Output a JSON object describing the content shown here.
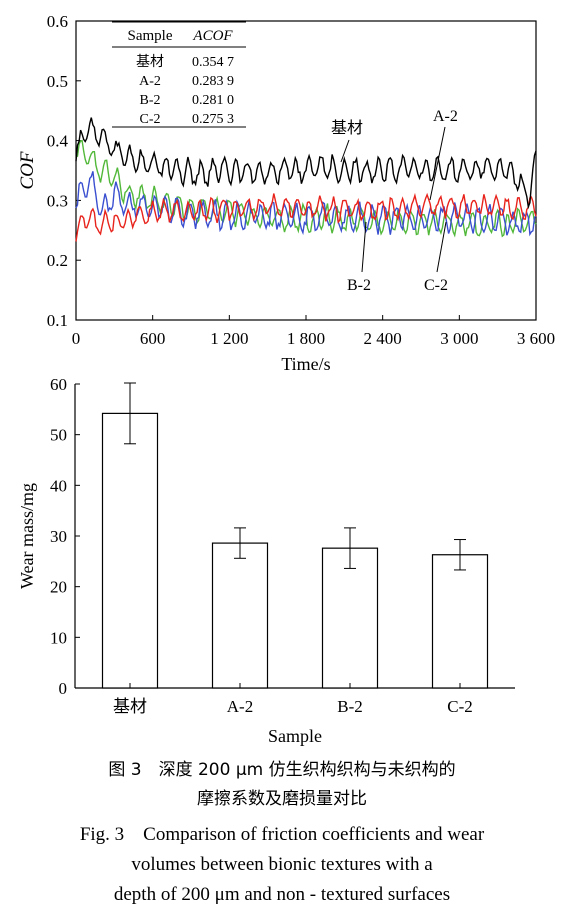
{
  "chart_data": [
    {
      "type": "line",
      "xlabel": "Time/s",
      "ylabel": "COF",
      "xlim": [
        0,
        3600
      ],
      "ylim": [
        0.1,
        0.6
      ],
      "x_ticks": [
        0,
        600,
        1200,
        1800,
        2400,
        3000,
        3600
      ],
      "x_tick_labels": [
        "0",
        "600",
        "1 200",
        "1 800",
        "2 400",
        "3 000",
        "3 600"
      ],
      "y_ticks": [
        0.1,
        0.2,
        0.3,
        0.4,
        0.5,
        0.6
      ],
      "y_tick_labels": [
        "0.1",
        "0.2",
        "0.3",
        "0.4",
        "0.5",
        "0.6"
      ],
      "grid": false,
      "table": {
        "headers": [
          "Sample",
          "ACOF"
        ],
        "rows": [
          [
            "基材",
            "0.354 7"
          ],
          [
            "A-2",
            "0.283 9"
          ],
          [
            "B-2",
            "0.281 0"
          ],
          [
            "C-2",
            "0.275 3"
          ]
        ]
      },
      "series": [
        {
          "name": "基材",
          "color": "#000000",
          "x": [
            0,
            100,
            200,
            300,
            400,
            600,
            800,
            1000,
            1200,
            1400,
            1600,
            1800,
            2000,
            2200,
            2400,
            2600,
            2800,
            3000,
            3200,
            3400,
            3500,
            3550,
            3600
          ],
          "y": [
            0.38,
            0.42,
            0.41,
            0.38,
            0.37,
            0.36,
            0.35,
            0.345,
            0.35,
            0.345,
            0.35,
            0.35,
            0.355,
            0.35,
            0.35,
            0.355,
            0.35,
            0.35,
            0.355,
            0.35,
            0.32,
            0.31,
            0.37
          ]
        },
        {
          "name": "A-2",
          "color": "#e8231c",
          "x": [
            0,
            50,
            100,
            200,
            400,
            600,
            800,
            1200,
            1600,
            2000,
            2400,
            2800,
            3200,
            3600
          ],
          "y": [
            0.24,
            0.27,
            0.27,
            0.26,
            0.27,
            0.28,
            0.28,
            0.285,
            0.29,
            0.285,
            0.285,
            0.29,
            0.29,
            0.285
          ]
        },
        {
          "name": "B-2",
          "color": "#3a4fd0",
          "x": [
            0,
            100,
            200,
            300,
            400,
            600,
            800,
            1200,
            1600,
            2000,
            2400,
            2800,
            3200,
            3600
          ],
          "y": [
            0.3,
            0.34,
            0.28,
            0.31,
            0.29,
            0.29,
            0.28,
            0.275,
            0.275,
            0.27,
            0.27,
            0.27,
            0.27,
            0.26
          ]
        },
        {
          "name": "C-2",
          "color": "#52b83a",
          "x": [
            0,
            100,
            200,
            300,
            400,
            600,
            800,
            1200,
            1600,
            2000,
            2400,
            2800,
            3200,
            3600
          ],
          "y": [
            0.39,
            0.37,
            0.35,
            0.34,
            0.31,
            0.3,
            0.29,
            0.28,
            0.27,
            0.27,
            0.265,
            0.265,
            0.26,
            0.265
          ]
        }
      ],
      "annotations": [
        "基材",
        "A-2",
        "B-2",
        "C-2"
      ]
    },
    {
      "type": "bar",
      "xlabel": "Sample",
      "ylabel": "Wear mass/mg",
      "categories": [
        "基材",
        "A-2",
        "B-2",
        "C-2"
      ],
      "values": [
        54.2,
        28.6,
        27.6,
        26.3
      ],
      "errors": [
        6.0,
        3.0,
        4.0,
        3.0
      ],
      "ylim": [
        0,
        60
      ],
      "y_ticks": [
        0,
        10,
        20,
        30,
        40,
        50,
        60
      ],
      "y_tick_labels": [
        "0",
        "10",
        "20",
        "30",
        "40",
        "50",
        "60"
      ],
      "grid": false
    }
  ],
  "caption": {
    "cn_line1": "图 3　深度 200 μm 仿生织构织构与未织构的",
    "cn_line2": "摩擦系数及磨损量对比",
    "en_line1": "Fig. 3　Comparison of friction coefficients and wear",
    "en_line2": "volumes between bionic textures with a",
    "en_line3": "depth of 200 μm and non - textured surfaces"
  }
}
